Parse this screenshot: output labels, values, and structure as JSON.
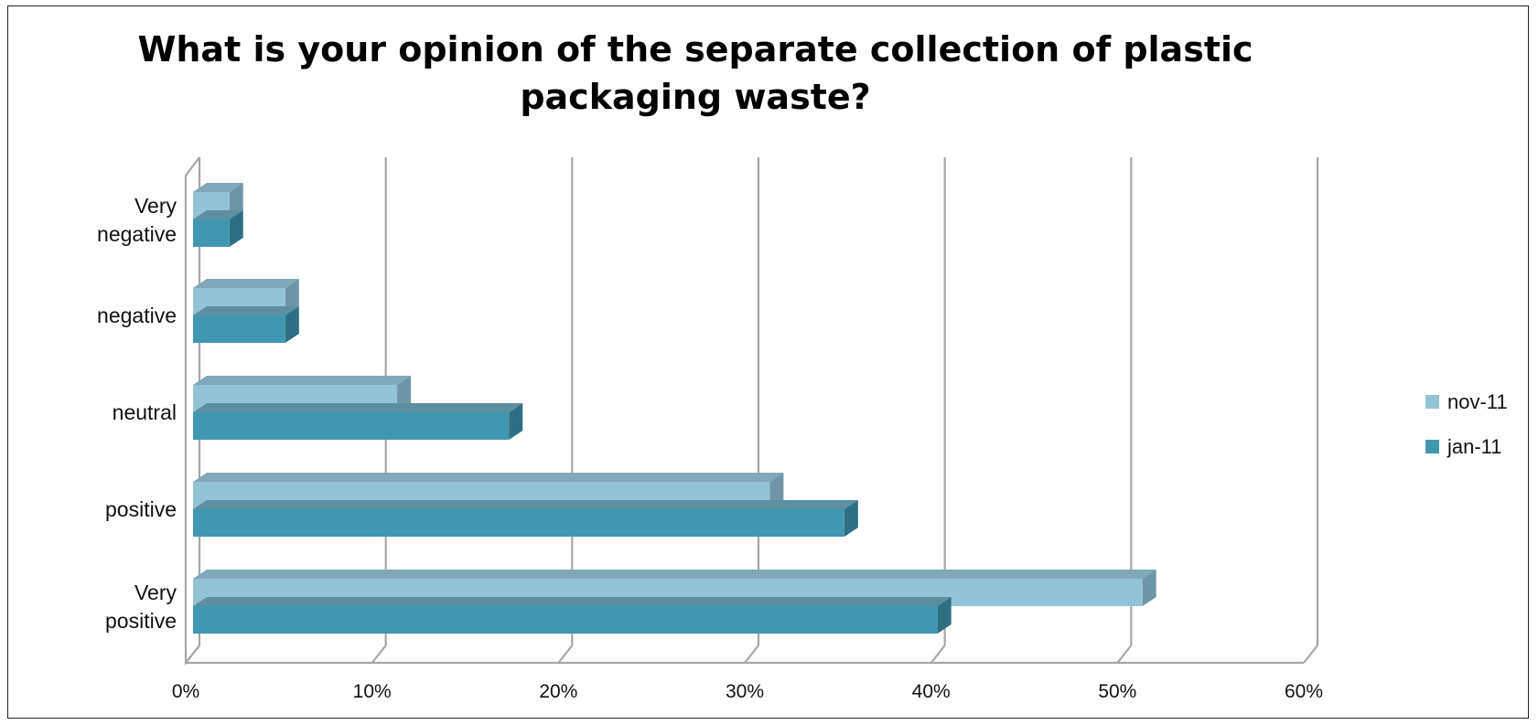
{
  "chart_data": {
    "type": "bar",
    "orientation": "horizontal",
    "title_lines": [
      "What is your opinion of the separate collection of plastic",
      "packaging waste?"
    ],
    "categories": [
      "Very negative",
      "negative",
      "neutral",
      "positive",
      "Very positive"
    ],
    "category_label_lines": [
      [
        "Very",
        "negative"
      ],
      [
        "negative"
      ],
      [
        "neutral"
      ],
      [
        "positive"
      ],
      [
        "Very",
        "positive"
      ]
    ],
    "series": [
      {
        "name": "nov-11",
        "color": "#93c4d6",
        "values": [
          2,
          5,
          11,
          31,
          51
        ]
      },
      {
        "name": "jan-11",
        "color": "#4197b1",
        "values": [
          2,
          5,
          17,
          35,
          40
        ]
      }
    ],
    "x_ticks": [
      "0%",
      "10%",
      "20%",
      "30%",
      "40%",
      "50%",
      "60%"
    ],
    "xlim": [
      0,
      60
    ],
    "grid": true,
    "legend_position": "right"
  }
}
